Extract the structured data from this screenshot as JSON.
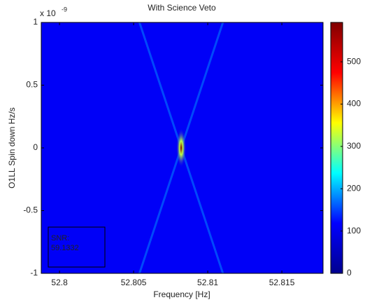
{
  "chart_data": {
    "type": "heatmap",
    "title": "With Science Veto",
    "xlabel": "Frequency [Hz]",
    "ylabel": "O1LL Spin down Hz/s",
    "y_exponent": {
      "base": "x 10",
      "power": "-9"
    },
    "xlim": [
      52.79877,
      52.81778
    ],
    "xticks": [
      52.8,
      52.805,
      52.81,
      52.815
    ],
    "ylim": [
      -1,
      1
    ],
    "yticks": [
      -1,
      -0.5,
      0,
      0.5,
      1
    ],
    "background": 110,
    "peak": {
      "x": 52.80821,
      "y": 0,
      "value": 590
    },
    "clim": [
      0,
      593
    ],
    "cticks": [
      0,
      100,
      200,
      300,
      400,
      500
    ],
    "colormap": [
      "#00008f",
      "#0000ff",
      "#00ffff",
      "#ffff00",
      "#ff0000",
      "#800000"
    ],
    "annotation": {
      "label": "SNR:",
      "value": "59.1332"
    }
  }
}
